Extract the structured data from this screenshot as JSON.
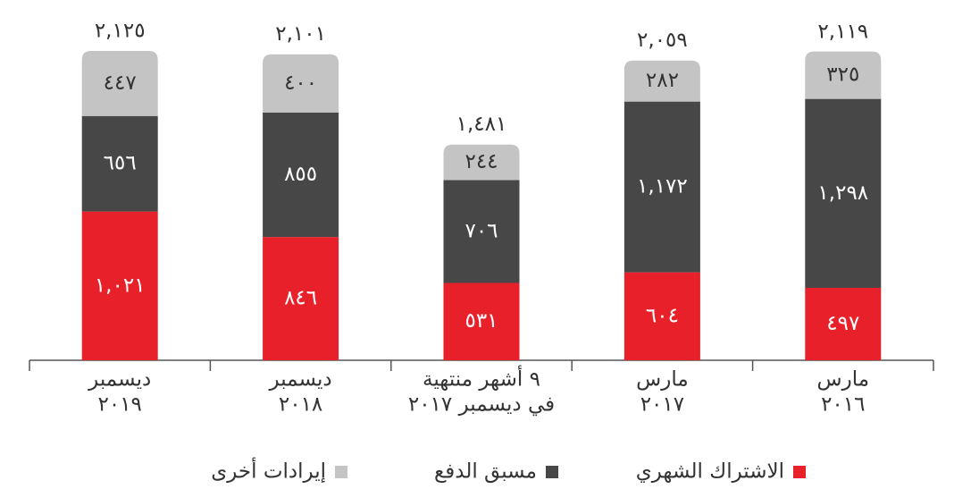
{
  "chart_data": {
    "type": "stacked_bar",
    "categories": [
      [
        "ديسمبر",
        "٢٠١٩"
      ],
      [
        "ديسمبر",
        "٢٠١٨"
      ],
      [
        "٩ أشهر منتهية",
        "في ديسمبر ٢٠١٧"
      ],
      [
        "مارس",
        "٢٠١٧"
      ],
      [
        "مارس",
        "٢٠١٦"
      ]
    ],
    "series": [
      {
        "name": "الاشتراك الشهري",
        "color": "#e8202a",
        "values": [
          1021,
          846,
          531,
          604,
          497
        ],
        "value_labels": [
          "١,٠٢١",
          "٨٤٦",
          "٥٣١",
          "٦٠٤",
          "٤٩٧"
        ]
      },
      {
        "name": "مسبق الدفع",
        "color": "#474748",
        "values": [
          656,
          855,
          706,
          1172,
          1298
        ],
        "value_labels": [
          "٦٥٦",
          "٨٥٥",
          "٧٠٦",
          "١,١٧٢",
          "١,٢٩٨"
        ]
      },
      {
        "name": "إيرادات أخرى",
        "color": "#c4c4c5",
        "values": [
          447,
          400,
          244,
          282,
          325
        ],
        "value_labels": [
          "٤٤٧",
          "٤٠٠",
          "٢٤٤",
          "٢٨٢",
          "٣٢٥"
        ]
      }
    ],
    "totals": [
      2125,
      2101,
      1481,
      2059,
      2119
    ],
    "total_labels": [
      "٢,١٢٥",
      "٢,١٠١",
      "١,٤٨١",
      "٢,٠٥٩",
      "٢,١١٩"
    ],
    "ylim": [
      0,
      2400
    ]
  }
}
